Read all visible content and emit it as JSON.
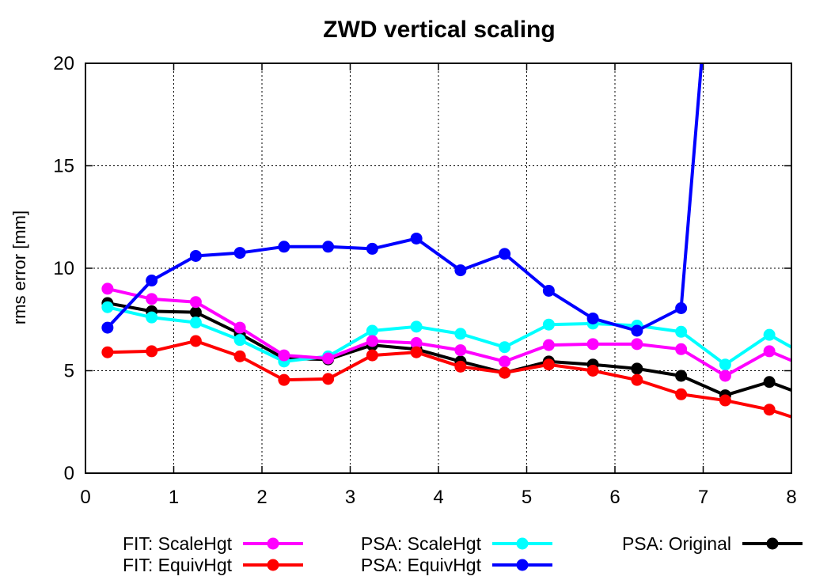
{
  "chart_data": {
    "type": "line",
    "title": "ZWD vertical scaling",
    "xlabel": "",
    "ylabel": "rms error [mm]",
    "xlim": [
      0,
      8
    ],
    "ylim": [
      0,
      20
    ],
    "xticks": [
      "0",
      "1",
      "2",
      "3",
      "4",
      "5",
      "6",
      "7",
      "8"
    ],
    "yticks": [
      "0",
      "5",
      "10",
      "15",
      "20"
    ],
    "grid": true,
    "legend_position": "bottom",
    "series": [
      {
        "name": "FIT: ScaleHgt",
        "color": "#ff00ff",
        "x": [
          0.25,
          0.75,
          1.25,
          1.75,
          2.25,
          2.75,
          3.25,
          3.75,
          4.25,
          4.75,
          5.25,
          5.75,
          6.25,
          6.75,
          7.25,
          7.75,
          8.0
        ],
        "y": [
          9.0,
          8.5,
          8.35,
          7.1,
          5.75,
          5.6,
          6.45,
          6.35,
          6.0,
          5.45,
          6.25,
          6.3,
          6.3,
          6.05,
          4.75,
          5.95,
          5.5
        ]
      },
      {
        "name": "FIT: EquivHgt",
        "color": "#ff0000",
        "x": [
          0.25,
          0.75,
          1.25,
          1.75,
          2.25,
          2.75,
          3.25,
          3.75,
          4.25,
          4.75,
          5.25,
          5.75,
          6.25,
          6.75,
          7.25,
          7.75,
          8.0
        ],
        "y": [
          5.9,
          5.95,
          6.45,
          5.7,
          4.55,
          4.6,
          5.75,
          5.9,
          5.2,
          4.9,
          5.3,
          5.0,
          4.55,
          3.85,
          3.55,
          3.1,
          2.75
        ]
      },
      {
        "name": "PSA: ScaleHgt",
        "color": "#00ffff",
        "x": [
          0.25,
          0.75,
          1.25,
          1.75,
          2.25,
          2.75,
          3.25,
          3.75,
          4.25,
          4.75,
          5.25,
          5.75,
          6.25,
          6.75,
          7.25,
          7.75,
          8.0
        ],
        "y": [
          8.1,
          7.6,
          7.35,
          6.5,
          5.45,
          5.7,
          6.95,
          7.15,
          6.8,
          6.15,
          7.25,
          7.3,
          7.2,
          6.9,
          5.3,
          6.75,
          6.15
        ]
      },
      {
        "name": "PSA: EquivHgt",
        "color": "#0000ff",
        "x": [
          0.25,
          0.75,
          1.25,
          1.75,
          2.25,
          2.75,
          3.25,
          3.75,
          4.25,
          4.75,
          5.25,
          5.75,
          6.25,
          6.75,
          6.98
        ],
        "y": [
          7.1,
          9.4,
          10.6,
          10.75,
          11.05,
          11.05,
          10.95,
          11.45,
          9.9,
          10.7,
          8.9,
          7.55,
          6.95,
          8.05,
          20.0
        ]
      },
      {
        "name": "PSA: Original",
        "color": "#000000",
        "x": [
          0.25,
          0.75,
          1.25,
          1.75,
          2.25,
          2.75,
          3.25,
          3.75,
          4.25,
          4.75,
          5.25,
          5.75,
          6.25,
          6.75,
          7.25,
          7.75,
          8.0
        ],
        "y": [
          8.3,
          7.9,
          7.85,
          6.8,
          5.6,
          5.55,
          6.25,
          6.05,
          5.45,
          4.9,
          5.45,
          5.3,
          5.1,
          4.75,
          3.8,
          4.45,
          4.05
        ]
      }
    ]
  }
}
